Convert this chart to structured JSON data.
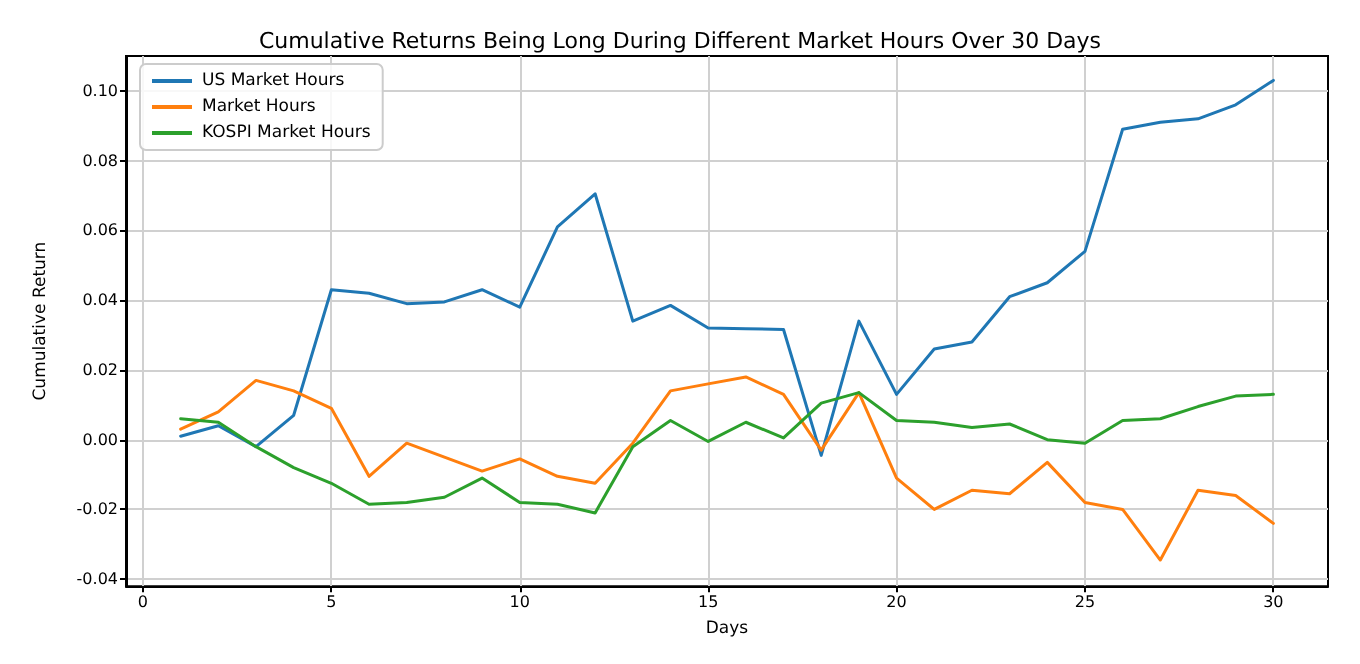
{
  "chart_data": {
    "type": "line",
    "title": "Cumulative Returns Being Long During Different Market Hours Over 30 Days",
    "xlabel": "Days",
    "ylabel": "Cumulative Return",
    "x": [
      1,
      2,
      3,
      4,
      5,
      6,
      7,
      8,
      9,
      10,
      11,
      12,
      13,
      14,
      15,
      16,
      17,
      18,
      19,
      20,
      21,
      22,
      23,
      24,
      25,
      26,
      27,
      28,
      29,
      30
    ],
    "series": [
      {
        "name": "US Market Hours",
        "color": "#1f77b4",
        "values": [
          0.001,
          0.004,
          -0.002,
          0.007,
          0.043,
          0.042,
          0.039,
          0.0395,
          0.043,
          0.038,
          0.061,
          0.0705,
          0.034,
          0.0385,
          0.032,
          0.0318,
          0.0316,
          -0.0045,
          0.034,
          0.013,
          0.026,
          0.028,
          0.041,
          0.045,
          0.054,
          0.089,
          0.091,
          0.092,
          0.096,
          0.103
        ]
      },
      {
        "name": "Market Hours",
        "color": "#ff7f0e",
        "values": [
          0.003,
          0.008,
          0.017,
          0.014,
          0.009,
          -0.0105,
          -0.001,
          -0.005,
          -0.009,
          -0.0055,
          -0.0105,
          -0.0125,
          -0.001,
          0.014,
          0.016,
          0.018,
          0.013,
          -0.003,
          0.0135,
          -0.011,
          -0.02,
          -0.0145,
          -0.0155,
          -0.0065,
          -0.018,
          -0.02,
          -0.0345,
          -0.0145,
          -0.016,
          -0.024
        ]
      },
      {
        "name": "KOSPI Market Hours",
        "color": "#2ca02c",
        "values": [
          0.006,
          0.005,
          -0.002,
          -0.008,
          -0.0125,
          -0.0185,
          -0.018,
          -0.0165,
          -0.011,
          -0.018,
          -0.0185,
          -0.021,
          -0.002,
          0.0055,
          -0.0005,
          0.005,
          0.0005,
          0.0105,
          0.0135,
          0.0055,
          0.005,
          0.0035,
          0.0045,
          0,
          -0.001,
          0.0055,
          0.006,
          0.0095,
          0.0125,
          0.013
        ]
      }
    ],
    "xlim": [
      -0.45,
      31.45
    ],
    "ylim": [
      -0.042,
      0.11
    ],
    "xticks": [
      0,
      5,
      10,
      15,
      20,
      25,
      30
    ],
    "yticks": [
      {
        "value": -0.04,
        "label": "-0.04"
      },
      {
        "value": -0.02,
        "label": "-0.02"
      },
      {
        "value": 0,
        "label": "0.00"
      },
      {
        "value": 0.02,
        "label": "0.02"
      },
      {
        "value": 0.04,
        "label": "0.04"
      },
      {
        "value": 0.06,
        "label": "0.06"
      },
      {
        "value": 0.08,
        "label": "0.08"
      },
      {
        "value": 0.1,
        "label": "0.10"
      }
    ],
    "grid": true,
    "legend": "top left",
    "marker": "none",
    "line_style": "solid"
  }
}
